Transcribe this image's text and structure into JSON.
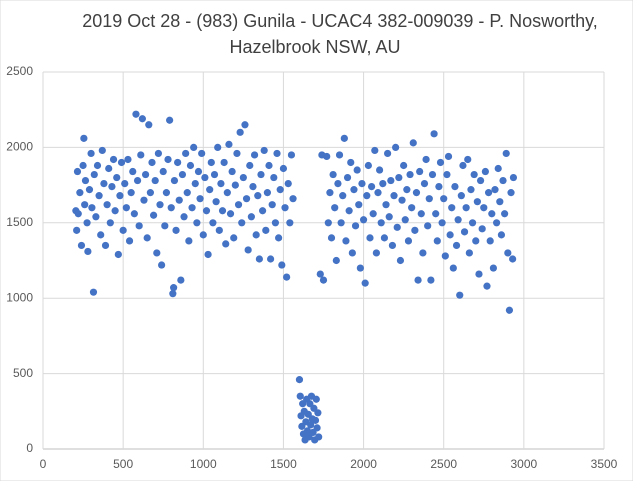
{
  "chart_data": {
    "type": "scatter",
    "title": [
      "2019 Oct 28 - (983) Gunila - UCAC4 382-009039 - P. Nosworthy,",
      "Hazelbrook NSW, AU"
    ],
    "color": "#4472c4",
    "xlim": [
      0,
      3500
    ],
    "xticks": [
      0,
      500,
      1000,
      1500,
      2000,
      2500,
      3000,
      3500
    ],
    "ylim": [
      0,
      2500
    ],
    "yticks": [
      0,
      500,
      1000,
      1500,
      2000,
      2500
    ],
    "grid": true,
    "x": [
      205,
      210,
      215,
      220,
      230,
      240,
      250,
      255,
      260,
      265,
      275,
      280,
      290,
      300,
      305,
      315,
      320,
      330,
      340,
      350,
      360,
      370,
      380,
      390,
      400,
      410,
      420,
      430,
      440,
      450,
      460,
      470,
      480,
      490,
      500,
      510,
      520,
      530,
      540,
      550,
      560,
      570,
      580,
      590,
      600,
      610,
      620,
      630,
      640,
      650,
      660,
      670,
      680,
      690,
      700,
      710,
      720,
      730,
      740,
      750,
      760,
      770,
      780,
      790,
      800,
      810,
      815,
      820,
      830,
      840,
      850,
      860,
      870,
      880,
      890,
      900,
      910,
      920,
      930,
      940,
      950,
      960,
      970,
      980,
      990,
      1000,
      1010,
      1020,
      1030,
      1040,
      1050,
      1060,
      1070,
      1080,
      1090,
      1100,
      1110,
      1120,
      1130,
      1140,
      1150,
      1160,
      1170,
      1180,
      1190,
      1200,
      1210,
      1220,
      1230,
      1240,
      1250,
      1260,
      1270,
      1280,
      1290,
      1300,
      1310,
      1320,
      1330,
      1340,
      1350,
      1360,
      1370,
      1380,
      1390,
      1400,
      1410,
      1420,
      1430,
      1440,
      1450,
      1460,
      1470,
      1480,
      1490,
      1500,
      1510,
      1520,
      1530,
      1540,
      1550,
      1560,
      1600,
      1605,
      1610,
      1615,
      1620,
      1625,
      1630,
      1635,
      1640,
      1645,
      1650,
      1655,
      1660,
      1665,
      1670,
      1675,
      1680,
      1685,
      1690,
      1695,
      1700,
      1705,
      1710,
      1715,
      1720,
      1730,
      1740,
      1750,
      1770,
      1780,
      1790,
      1800,
      1810,
      1820,
      1830,
      1840,
      1850,
      1860,
      1870,
      1880,
      1890,
      1900,
      1910,
      1920,
      1930,
      1940,
      1950,
      1960,
      1970,
      1980,
      1990,
      2000,
      2010,
      2020,
      2030,
      2040,
      2050,
      2060,
      2070,
      2080,
      2090,
      2100,
      2110,
      2120,
      2130,
      2140,
      2150,
      2160,
      2170,
      2180,
      2190,
      2200,
      2210,
      2220,
      2230,
      2240,
      2250,
      2260,
      2270,
      2280,
      2290,
      2300,
      2310,
      2320,
      2330,
      2340,
      2350,
      2360,
      2370,
      2380,
      2390,
      2400,
      2410,
      2420,
      2430,
      2440,
      2450,
      2460,
      2470,
      2480,
      2490,
      2500,
      2510,
      2520,
      2530,
      2540,
      2550,
      2560,
      2570,
      2580,
      2590,
      2600,
      2610,
      2620,
      2630,
      2640,
      2650,
      2660,
      2670,
      2680,
      2690,
      2700,
      2710,
      2720,
      2730,
      2740,
      2750,
      2760,
      2770,
      2780,
      2790,
      2800,
      2810,
      2820,
      2830,
      2840,
      2850,
      2860,
      2870,
      2880,
      2890,
      2900,
      2910,
      2920,
      2930,
      2935
    ],
    "values": [
      1580,
      1450,
      1840,
      1560,
      1700,
      1350,
      1880,
      2060,
      1620,
      1780,
      1500,
      1310,
      1720,
      1960,
      1600,
      1040,
      1820,
      1540,
      1880,
      1680,
      1420,
      1980,
      1760,
      1350,
      1620,
      1860,
      1500,
      1740,
      1920,
      1580,
      1800,
      1290,
      1680,
      1900,
      1450,
      1760,
      1600,
      1920,
      1380,
      1700,
      1840,
      1560,
      2220,
      1780,
      1480,
      1950,
      2190,
      1650,
      1820,
      1400,
      2150,
      1700,
      1900,
      1550,
      1780,
      1300,
      1960,
      1620,
      1220,
      1840,
      1480,
      1700,
      1920,
      2180,
      1600,
      1030,
      1070,
      1780,
      1450,
      1900,
      1650,
      1120,
      1820,
      1540,
      1960,
      1700,
      1380,
      1880,
      1600,
      2000,
      1760,
      1500,
      1840,
      1660,
      1960,
      1420,
      1800,
      1580,
      1290,
      1720,
      1900,
      1500,
      1820,
      1640,
      2000,
      1450,
      1760,
      1580,
      1900,
      1360,
      1700,
      2020,
      1560,
      1840,
      1400,
      1750,
      1960,
      1620,
      2100,
      1500,
      1800,
      2150,
      1660,
      1320,
      1880,
      1540,
      1740,
      1950,
      1420,
      1680,
      1260,
      1820,
      1580,
      1980,
      1450,
      1700,
      1880,
      1260,
      1620,
      1800,
      1500,
      1960,
      1400,
      1720,
      1220,
      1860,
      1600,
      1140,
      1760,
      1500,
      1950,
      1660,
      460,
      350,
      220,
      150,
      300,
      100,
      250,
      60,
      180,
      330,
      120,
      230,
      80,
      300,
      160,
      350,
      200,
      110,
      270,
      60,
      190,
      330,
      140,
      240,
      80,
      1160,
      1950,
      1120,
      1940,
      1500,
      1700,
      1400,
      1820,
      1600,
      1250,
      1760,
      1950,
      1500,
      1680,
      2060,
      1380,
      1800,
      1580,
      1900,
      1300,
      1720,
      1480,
      1850,
      1620,
      1200,
      1760,
      1520,
      1100,
      1680,
      1880,
      1400,
      1740,
      1560,
      1980,
      1300,
      1700,
      1850,
      1500,
      1760,
      1400,
      1620,
      1960,
      1540,
      1780,
      1350,
      1680,
      2000,
      1470,
      1800,
      1250,
      1650,
      1880,
      1520,
      1720,
      1380,
      1820,
      1600,
      2030,
      1450,
      1700,
      1120,
      1840,
      1560,
      1300,
      1760,
      1920,
      1480,
      1660,
      1120,
      1820,
      2090,
      1560,
      1380,
      1740,
      1900,
      1500,
      1660,
      1280,
      1820,
      1940,
      1420,
      1600,
      1200,
      1740,
      1350,
      1520,
      1020,
      1680,
      1880,
      1440,
      1600,
      1920,
      1300,
      1720,
      1500,
      1820,
      1380,
      1640,
      1160,
      1780,
      1460,
      1600,
      1840,
      1080,
      1700,
      1380,
      1560,
      1200,
      1720,
      1500,
      1860,
      1640,
      1420,
      1780,
      1560,
      1960,
      1300,
      920,
      1700,
      1260,
      1800
    ]
  }
}
